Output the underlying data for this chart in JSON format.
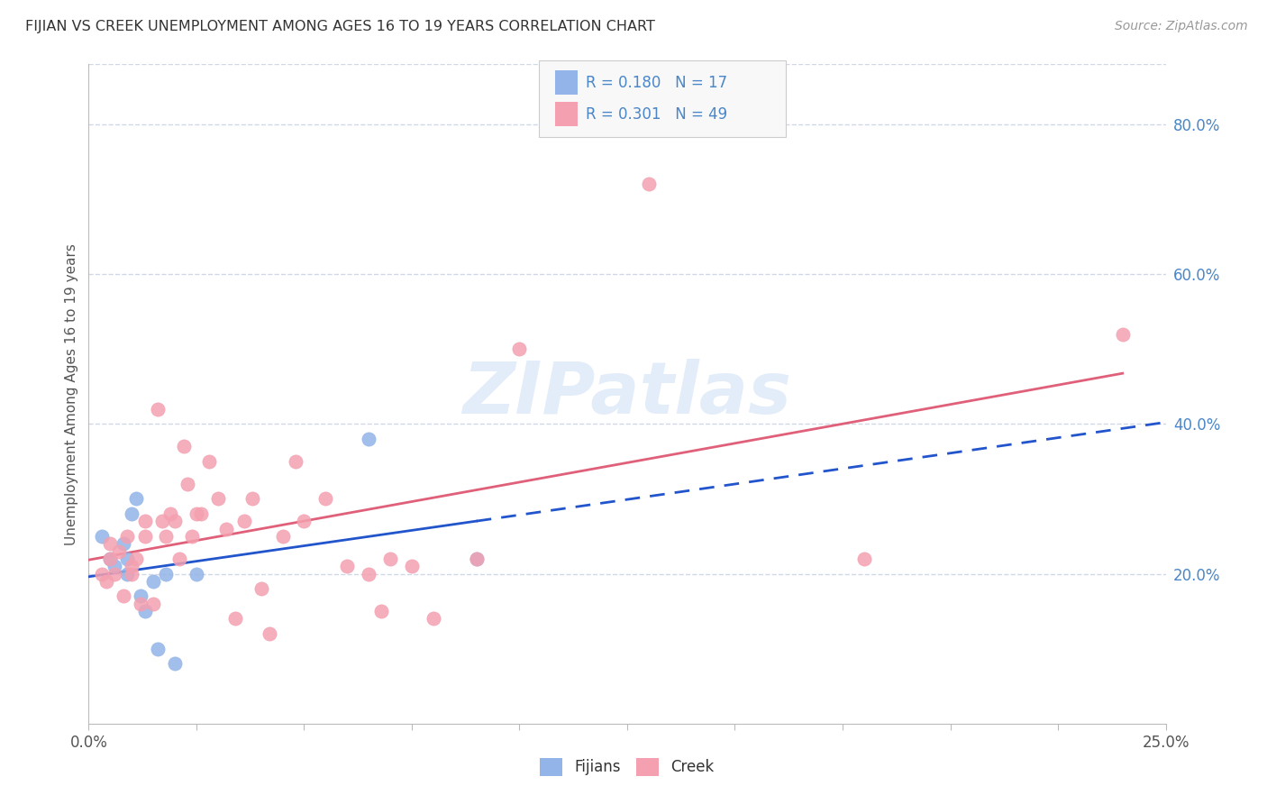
{
  "title": "FIJIAN VS CREEK UNEMPLOYMENT AMONG AGES 16 TO 19 YEARS CORRELATION CHART",
  "source": "Source: ZipAtlas.com",
  "ylabel": "Unemployment Among Ages 16 to 19 years",
  "right_yticks": [
    0.2,
    0.4,
    0.6,
    0.8
  ],
  "right_yticklabels": [
    "20.0%",
    "40.0%",
    "60.0%",
    "80.0%"
  ],
  "xlim": [
    0.0,
    0.25
  ],
  "ylim": [
    0.0,
    0.88
  ],
  "fijian_R": 0.18,
  "fijian_N": 17,
  "creek_R": 0.301,
  "creek_N": 49,
  "fijian_color": "#92b4e8",
  "creek_color": "#f4a0b0",
  "fijian_line_color": "#2255cc",
  "creek_line_color": "#e0607a",
  "legend_label_1": "Fijians",
  "legend_label_2": "Creek",
  "watermark_text": "ZIPatlas",
  "background_color": "#ffffff",
  "grid_color": "#d0d8e8",
  "xtick_positions": [
    0.0,
    0.025,
    0.05,
    0.075,
    0.1,
    0.125,
    0.15,
    0.175,
    0.2,
    0.225,
    0.25
  ],
  "fijian_x": [
    0.003,
    0.005,
    0.006,
    0.008,
    0.009,
    0.009,
    0.01,
    0.011,
    0.012,
    0.013,
    0.015,
    0.016,
    0.018,
    0.02,
    0.025,
    0.065,
    0.09
  ],
  "fijian_y": [
    0.25,
    0.22,
    0.21,
    0.24,
    0.2,
    0.22,
    0.28,
    0.3,
    0.17,
    0.15,
    0.19,
    0.1,
    0.2,
    0.08,
    0.2,
    0.38,
    0.22
  ],
  "creek_x": [
    0.003,
    0.004,
    0.005,
    0.005,
    0.006,
    0.007,
    0.008,
    0.009,
    0.01,
    0.01,
    0.011,
    0.012,
    0.013,
    0.013,
    0.015,
    0.016,
    0.017,
    0.018,
    0.019,
    0.02,
    0.021,
    0.022,
    0.023,
    0.024,
    0.025,
    0.026,
    0.028,
    0.03,
    0.032,
    0.034,
    0.036,
    0.038,
    0.04,
    0.042,
    0.045,
    0.048,
    0.05,
    0.055,
    0.06,
    0.065,
    0.068,
    0.07,
    0.075,
    0.08,
    0.09,
    0.1,
    0.13,
    0.18,
    0.24
  ],
  "creek_y": [
    0.2,
    0.19,
    0.22,
    0.24,
    0.2,
    0.23,
    0.17,
    0.25,
    0.21,
    0.2,
    0.22,
    0.16,
    0.25,
    0.27,
    0.16,
    0.42,
    0.27,
    0.25,
    0.28,
    0.27,
    0.22,
    0.37,
    0.32,
    0.25,
    0.28,
    0.28,
    0.35,
    0.3,
    0.26,
    0.14,
    0.27,
    0.3,
    0.18,
    0.12,
    0.25,
    0.35,
    0.27,
    0.3,
    0.21,
    0.2,
    0.15,
    0.22,
    0.21,
    0.14,
    0.22,
    0.5,
    0.72,
    0.22,
    0.52
  ]
}
